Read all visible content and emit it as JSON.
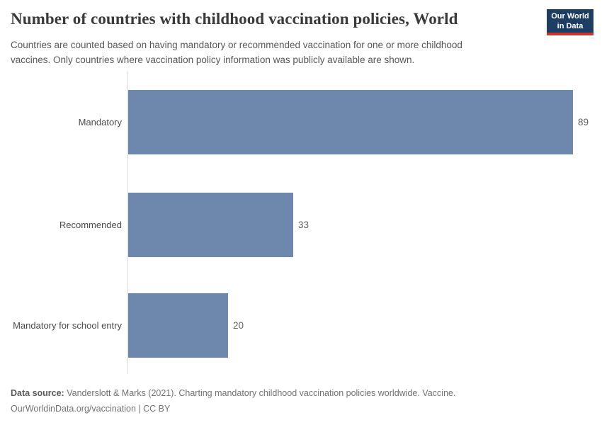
{
  "header": {
    "title": "Number of countries with childhood vaccination policies, World",
    "subtitle": "Countries are counted based on having mandatory or recommended vaccination for one or more childhood vaccines. Only countries where vaccination policy information was publicly available are shown.",
    "logo": {
      "line1": "Our World",
      "line2": "in Data",
      "background_color": "#1d3d63",
      "accent_color": "#c9352e"
    }
  },
  "chart_data": {
    "type": "bar",
    "orientation": "horizontal",
    "title": "Number of countries with childhood vaccination policies, World",
    "categories": [
      "Mandatory",
      "Recommended",
      "Mandatory for school entry"
    ],
    "values": [
      89,
      33,
      20
    ],
    "value_labels": [
      "89",
      "33",
      "20"
    ],
    "xlim": [
      0,
      89
    ],
    "grid": false,
    "legend": "none",
    "bar_color": "#6e87ad",
    "axis_line_color": "#d9d9d9"
  },
  "footer": {
    "datasource_label": "Data source:",
    "datasource_text": " Vanderslott & Marks (2021). Charting mandatory childhood vaccination policies worldwide. Vaccine.",
    "line2": "OurWorldinData.org/vaccination | CC BY"
  }
}
